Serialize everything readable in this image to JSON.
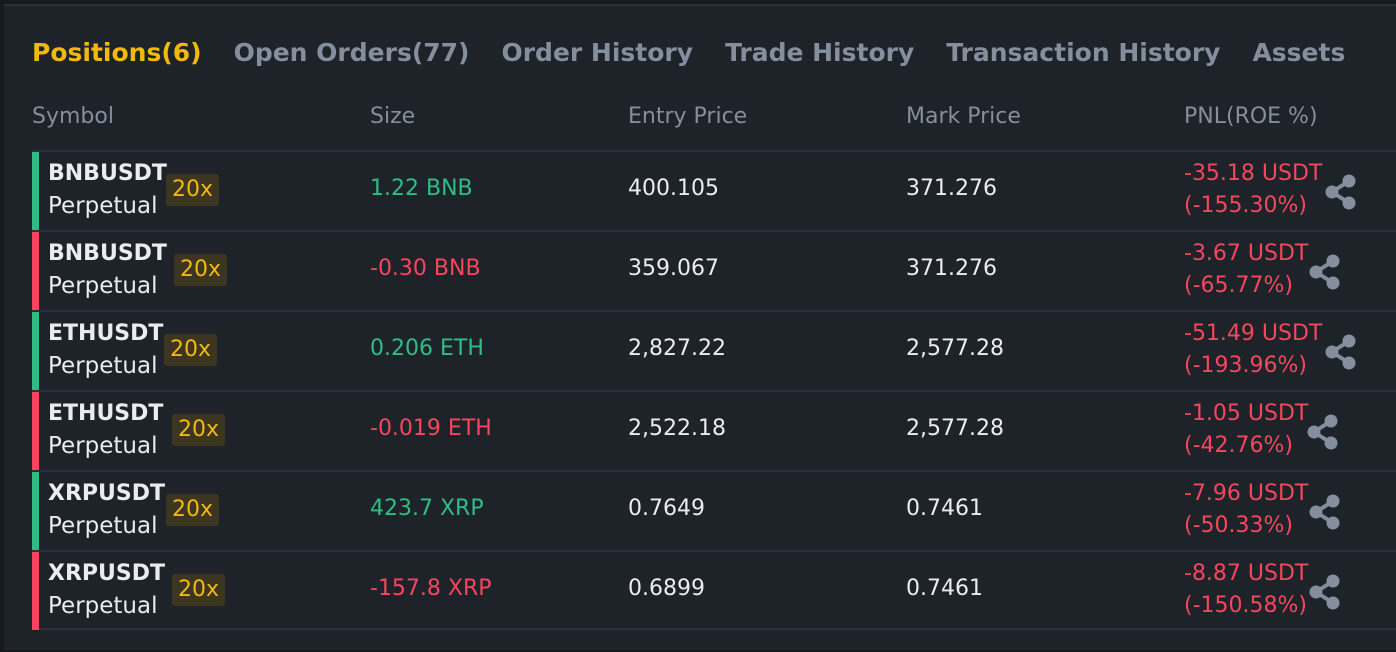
{
  "tabs": [
    {
      "label": "Positions(6)",
      "active": true
    },
    {
      "label": "Open Orders(77)"
    },
    {
      "label": "Order History"
    },
    {
      "label": "Trade History"
    },
    {
      "label": "Transaction History"
    },
    {
      "label": "Assets"
    }
  ],
  "columns": {
    "symbol": "Symbol",
    "size": "Size",
    "entry_price": "Entry Price",
    "mark_price": "Mark Price",
    "pnl": "PNL(ROE %)"
  },
  "colors": {
    "accent": "#f0b90b",
    "positive": "#2ebd85",
    "negative": "#f6465d"
  },
  "positions": [
    {
      "symbol": "BNBUSDT",
      "contract": "Perpetual",
      "leverage": "20x",
      "side": "long",
      "size": "1.22 BNB",
      "entry": "400.105",
      "mark": "371.276",
      "pnl": "-35.18 USDT",
      "roe": "(-155.30%)",
      "icon": "share-icon"
    },
    {
      "symbol": "BNBUSDT",
      "contract": "Perpetual",
      "leverage": "20x",
      "side": "short",
      "size": "-0.30 BNB",
      "entry": "359.067",
      "mark": "371.276",
      "pnl": "-3.67 USDT",
      "roe": "(-65.77%)",
      "icon": "share-icon"
    },
    {
      "symbol": "ETHUSDT",
      "contract": "Perpetual",
      "leverage": "20x",
      "side": "long",
      "size": "0.206 ETH",
      "entry": "2,827.22",
      "mark": "2,577.28",
      "pnl": "-51.49 USDT",
      "roe": "(-193.96%)",
      "icon": "share-icon"
    },
    {
      "symbol": "ETHUSDT",
      "contract": "Perpetual",
      "leverage": "20x",
      "side": "short",
      "size": "-0.019 ETH",
      "entry": "2,522.18",
      "mark": "2,577.28",
      "pnl": "-1.05 USDT",
      "roe": "(-42.76%)",
      "icon": "share-icon"
    },
    {
      "symbol": "XRPUSDT",
      "contract": "Perpetual",
      "leverage": "20x",
      "side": "long",
      "size": "423.7 XRP",
      "entry": "0.7649",
      "mark": "0.7461",
      "pnl": "-7.96 USDT",
      "roe": "(-50.33%)",
      "icon": "share-icon"
    },
    {
      "symbol": "XRPUSDT",
      "contract": "Perpetual",
      "leverage": "20x",
      "side": "short",
      "size": "-157.8 XRP",
      "entry": "0.6899",
      "mark": "0.7461",
      "pnl": "-8.87 USDT",
      "roe": "(-150.58%)",
      "icon": "share-icon"
    }
  ]
}
